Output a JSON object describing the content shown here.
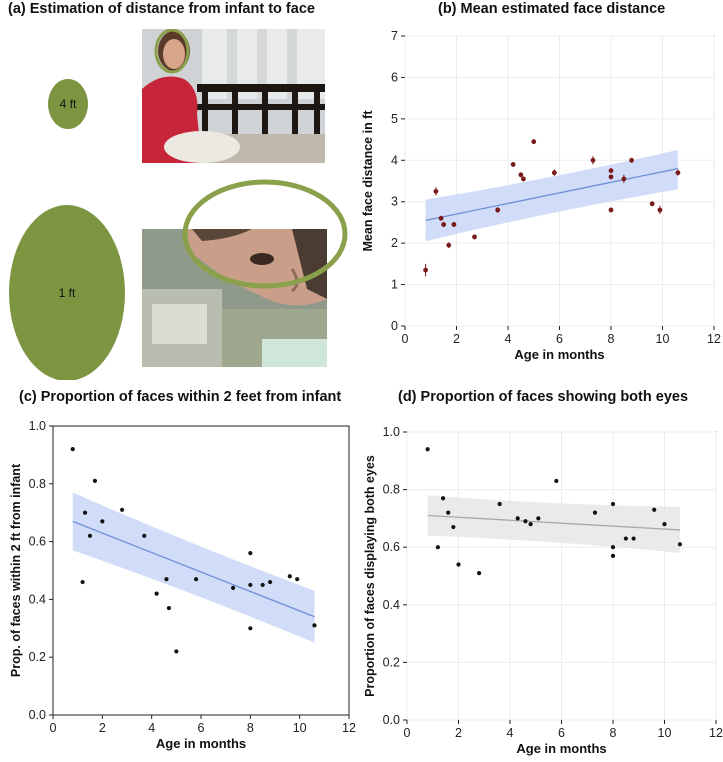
{
  "panel_a": {
    "title": "(a) Estimation of distance from infant to face",
    "small_oval_label": "4 ft",
    "large_oval_label": "1 ft",
    "photo_top_alt": "infant-view photo of woman in red shirt at ~4 ft",
    "photo_bottom_alt": "infant-view close-up of face at ~1 ft"
  },
  "colors": {
    "oval": "#7d9440",
    "oval_ring": "#8aa04a",
    "band_blue": "#c9d7f7",
    "line_blue": "#6f8fd8",
    "band_gray": "#e6e6e6",
    "line_gray": "#a8a8a8",
    "point_dark": "#111111",
    "point_red": "#7a1a1a"
  },
  "chart_data": [
    {
      "id": "b",
      "type": "scatter",
      "title": "(b) Mean estimated face distance",
      "xlabel": "Age in months",
      "ylabel": "Mean face distance in ft",
      "xlim": [
        0,
        12
      ],
      "ylim": [
        0,
        7
      ],
      "xticks": [
        "0",
        "2",
        "4",
        "6",
        "8",
        "10",
        "12"
      ],
      "yticks": [
        "0",
        "1",
        "2",
        "3",
        "4",
        "5",
        "6",
        "7"
      ],
      "grid": true,
      "points": [
        {
          "x": 0.8,
          "y": 1.35,
          "err": 0.15
        },
        {
          "x": 1.2,
          "y": 3.25,
          "err": 0.1
        },
        {
          "x": 1.4,
          "y": 2.6,
          "err": 0.06
        },
        {
          "x": 1.5,
          "y": 2.45,
          "err": 0.06
        },
        {
          "x": 1.7,
          "y": 1.95,
          "err": 0.07
        },
        {
          "x": 1.9,
          "y": 2.45,
          "err": 0.06
        },
        {
          "x": 2.7,
          "y": 2.15,
          "err": 0.06
        },
        {
          "x": 3.6,
          "y": 2.8,
          "err": 0.07
        },
        {
          "x": 4.2,
          "y": 3.9,
          "err": 0.06
        },
        {
          "x": 4.5,
          "y": 3.65,
          "err": 0.06
        },
        {
          "x": 4.6,
          "y": 3.55,
          "err": 0.06
        },
        {
          "x": 5.0,
          "y": 4.45,
          "err": 0.06
        },
        {
          "x": 5.8,
          "y": 3.7,
          "err": 0.08
        },
        {
          "x": 7.3,
          "y": 4.0,
          "err": 0.1
        },
        {
          "x": 8.0,
          "y": 3.75,
          "err": 0.06
        },
        {
          "x": 8.0,
          "y": 3.6,
          "err": 0.06
        },
        {
          "x": 8.0,
          "y": 2.8,
          "err": 0.06
        },
        {
          "x": 8.5,
          "y": 3.55,
          "err": 0.1
        },
        {
          "x": 8.8,
          "y": 4.0,
          "err": 0.06
        },
        {
          "x": 9.6,
          "y": 2.95,
          "err": 0.06
        },
        {
          "x": 9.9,
          "y": 2.8,
          "err": 0.1
        },
        {
          "x": 10.6,
          "y": 3.7,
          "err": 0.07
        }
      ],
      "fit": {
        "x": [
          0.8,
          10.6
        ],
        "y": [
          2.55,
          3.8
        ]
      },
      "band": {
        "x": [
          0.8,
          10.6
        ],
        "upper": [
          3.05,
          4.25
        ],
        "lower": [
          2.05,
          3.3
        ]
      },
      "style": "blue_error"
    },
    {
      "id": "c",
      "type": "scatter",
      "title": "(c) Proportion of faces within 2 feet from infant",
      "xlabel": "Age in months",
      "ylabel": "Prop. of faces within 2 ft from infant",
      "xlim": [
        0,
        12
      ],
      "ylim": [
        0,
        1
      ],
      "xticks": [
        "0",
        "2",
        "4",
        "6",
        "8",
        "10",
        "12"
      ],
      "yticks": [
        "0.0",
        "0.2",
        "0.4",
        "0.6",
        "0.8",
        "1.0"
      ],
      "grid": false,
      "points": [
        {
          "x": 0.8,
          "y": 0.92
        },
        {
          "x": 1.2,
          "y": 0.46
        },
        {
          "x": 1.3,
          "y": 0.7
        },
        {
          "x": 1.5,
          "y": 0.62
        },
        {
          "x": 1.7,
          "y": 0.81
        },
        {
          "x": 2.0,
          "y": 0.67
        },
        {
          "x": 2.8,
          "y": 0.71
        },
        {
          "x": 3.7,
          "y": 0.62
        },
        {
          "x": 4.2,
          "y": 0.42
        },
        {
          "x": 4.6,
          "y": 0.47
        },
        {
          "x": 4.7,
          "y": 0.37
        },
        {
          "x": 5.0,
          "y": 0.22
        },
        {
          "x": 5.8,
          "y": 0.47
        },
        {
          "x": 7.3,
          "y": 0.44
        },
        {
          "x": 8.0,
          "y": 0.56
        },
        {
          "x": 8.0,
          "y": 0.45
        },
        {
          "x": 8.0,
          "y": 0.3
        },
        {
          "x": 8.5,
          "y": 0.45
        },
        {
          "x": 8.8,
          "y": 0.46
        },
        {
          "x": 9.6,
          "y": 0.48
        },
        {
          "x": 9.9,
          "y": 0.47
        },
        {
          "x": 10.6,
          "y": 0.31
        }
      ],
      "fit": {
        "x": [
          0.8,
          10.6
        ],
        "y": [
          0.67,
          0.34
        ]
      },
      "band": {
        "x": [
          0.8,
          10.6
        ],
        "upper": [
          0.77,
          0.43
        ],
        "lower": [
          0.57,
          0.25
        ]
      },
      "style": "blue"
    },
    {
      "id": "d",
      "type": "scatter",
      "title": "(d) Proportion of faces showing both eyes",
      "xlabel": "Age in months",
      "ylabel": "Proportion of faces displaying both eyes",
      "xlim": [
        0,
        12
      ],
      "ylim": [
        0,
        1
      ],
      "xticks": [
        "0",
        "2",
        "4",
        "6",
        "8",
        "10",
        "12"
      ],
      "yticks": [
        "0.0",
        "0.2",
        "0.4",
        "0.6",
        "0.8",
        "1.0"
      ],
      "grid": true,
      "points": [
        {
          "x": 0.8,
          "y": 0.94
        },
        {
          "x": 1.2,
          "y": 0.6
        },
        {
          "x": 1.4,
          "y": 0.77
        },
        {
          "x": 1.6,
          "y": 0.72
        },
        {
          "x": 1.8,
          "y": 0.67
        },
        {
          "x": 2.0,
          "y": 0.54
        },
        {
          "x": 2.8,
          "y": 0.51
        },
        {
          "x": 3.6,
          "y": 0.75
        },
        {
          "x": 4.3,
          "y": 0.7
        },
        {
          "x": 4.6,
          "y": 0.69
        },
        {
          "x": 4.8,
          "y": 0.68
        },
        {
          "x": 5.1,
          "y": 0.7
        },
        {
          "x": 5.8,
          "y": 0.83
        },
        {
          "x": 7.3,
          "y": 0.72
        },
        {
          "x": 8.0,
          "y": 0.75
        },
        {
          "x": 8.0,
          "y": 0.6
        },
        {
          "x": 8.0,
          "y": 0.57
        },
        {
          "x": 8.5,
          "y": 0.63
        },
        {
          "x": 8.8,
          "y": 0.63
        },
        {
          "x": 9.6,
          "y": 0.73
        },
        {
          "x": 10.0,
          "y": 0.68
        },
        {
          "x": 10.6,
          "y": 0.61
        }
      ],
      "fit": {
        "x": [
          0.8,
          10.6
        ],
        "y": [
          0.71,
          0.66
        ]
      },
      "band": {
        "x": [
          0.8,
          10.6
        ],
        "upper": [
          0.78,
          0.74
        ],
        "lower": [
          0.64,
          0.58
        ]
      },
      "style": "gray"
    }
  ]
}
